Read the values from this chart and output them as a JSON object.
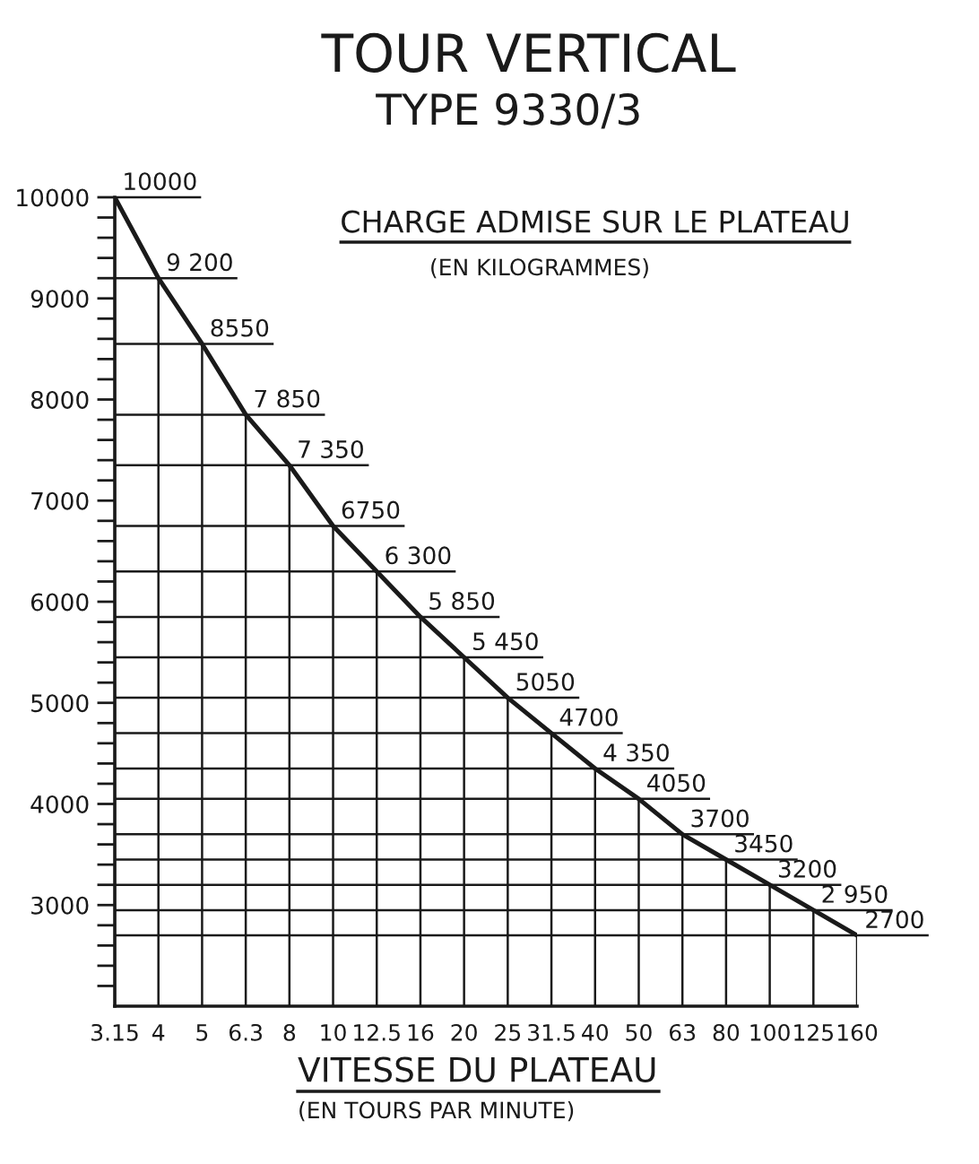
{
  "chart_data": {
    "type": "line",
    "title": "TOUR VERTICAL",
    "subtitle": "TYPE 9330/3",
    "ylabel": "CHARGE ADMISE SUR LE PLATEAU\n(EN KILOGRAMMES)",
    "xlabel": "VITESSE DU PLATEAU\n(EN TOURS PAR MINUTE)",
    "categories": [
      "3.15",
      "4",
      "5",
      "6.3",
      "8",
      "10",
      "12.5",
      "16",
      "20",
      "25",
      "31.5",
      "40",
      "50",
      "63",
      "80",
      "100",
      "125",
      "160"
    ],
    "values": [
      10000,
      9200,
      8550,
      7850,
      7350,
      6750,
      6300,
      5850,
      5450,
      5050,
      4700,
      4350,
      4050,
      3700,
      3450,
      3200,
      2950,
      2700
    ],
    "value_labels": [
      "10000",
      "9 200",
      "8550",
      "7 850",
      "7 350",
      "6750",
      "6 300",
      "5 850",
      "5 450",
      "5050",
      "4700",
      "4 350",
      "4050",
      "3700",
      "3450",
      "3200",
      "2 950",
      "2700"
    ],
    "color": "#1a1a1a",
    "ylim": [
      2000,
      10000
    ],
    "yticks": [
      {
        "value": 2200,
        "label": null
      },
      {
        "value": 2400,
        "label": null
      },
      {
        "value": 2600,
        "label": null
      },
      {
        "value": 2800,
        "label": null
      },
      3000,
      {
        "value": 3200,
        "label": null
      },
      {
        "value": 3400,
        "label": null
      },
      {
        "value": 3600,
        "label": null
      },
      {
        "value": 3800,
        "label": null
      },
      4000,
      {
        "value": 4200,
        "label": null
      },
      {
        "value": 4400,
        "label": null
      },
      {
        "value": 4600,
        "label": null
      },
      {
        "value": 4800,
        "label": null
      },
      5000,
      {
        "value": 5200,
        "label": null
      },
      {
        "value": 5400,
        "label": null
      },
      {
        "value": 5600,
        "label": null
      },
      {
        "value": 5800,
        "label": null
      },
      6000,
      {
        "value": 6200,
        "label": null
      },
      {
        "value": 6400,
        "label": null
      },
      {
        "value": 6600,
        "label": null
      },
      {
        "value": 6800,
        "label": null
      },
      7000,
      {
        "value": 7200,
        "label": null
      },
      {
        "value": 7400,
        "label": null
      },
      {
        "value": 7600,
        "label": null
      },
      {
        "value": 7800,
        "label": null
      },
      8000,
      {
        "value": 8200,
        "label": null
      },
      {
        "value": 8400,
        "label": null
      },
      {
        "value": 8600,
        "label": null
      },
      {
        "value": 8800,
        "label": null
      },
      9000,
      {
        "value": 9200,
        "label": null
      },
      {
        "value": 9400,
        "label": null
      },
      {
        "value": 9600,
        "label": null
      },
      {
        "value": 9800,
        "label": null
      },
      10000
    ],
    "grid": true
  }
}
